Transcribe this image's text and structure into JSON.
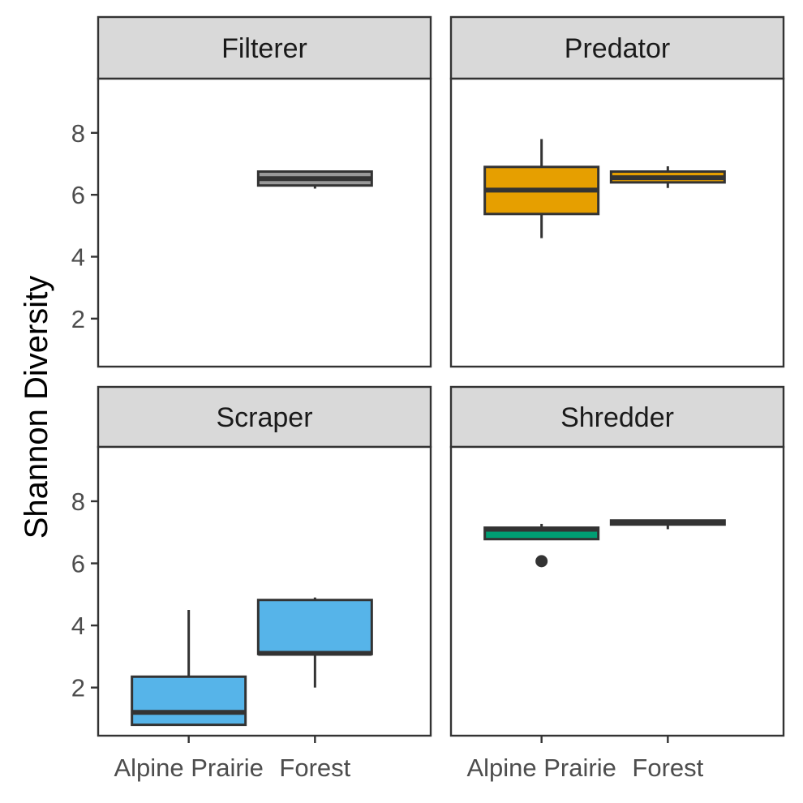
{
  "chart_data": {
    "type": "boxplot",
    "facet_layout": "2x2",
    "xlabel": "",
    "ylabel": "Shannon Diversity",
    "ylim": [
      0.45,
      9.75
    ],
    "y_ticks": [
      2,
      4,
      6,
      8
    ],
    "categories": [
      "Alpine Prairie",
      "Forest"
    ],
    "grid": false,
    "legend": "none",
    "colors": {
      "panel_border": "#333333",
      "strip_fill": "#d9d9d9",
      "median_line": "#333333"
    },
    "panels": [
      {
        "label": "Filterer",
        "fill": "#999999",
        "boxes": [
          {
            "category": "Forest",
            "min": 6.2,
            "q1": 6.3,
            "median": 6.52,
            "q3": 6.75,
            "max": 6.78,
            "outliers": []
          }
        ]
      },
      {
        "label": "Predator",
        "fill": "#E69F00",
        "boxes": [
          {
            "category": "Alpine Prairie",
            "min": 4.6,
            "q1": 5.38,
            "median": 6.15,
            "q3": 6.9,
            "max": 7.8,
            "outliers": []
          },
          {
            "category": "Forest",
            "min": 6.22,
            "q1": 6.4,
            "median": 6.55,
            "q3": 6.75,
            "max": 6.92,
            "outliers": []
          }
        ]
      },
      {
        "label": "Scraper",
        "fill": "#56B4E9",
        "boxes": [
          {
            "category": "Alpine Prairie",
            "min": 0.8,
            "q1": 0.8,
            "median": 1.2,
            "q3": 2.35,
            "max": 4.5,
            "outliers": []
          },
          {
            "category": "Forest",
            "min": 2.0,
            "q1": 3.08,
            "median": 3.1,
            "q3": 4.82,
            "max": 4.9,
            "outliers": []
          }
        ]
      },
      {
        "label": "Shredder",
        "fill": "#009E73",
        "boxes": [
          {
            "category": "Alpine Prairie",
            "min": 6.78,
            "q1": 6.78,
            "median": 7.1,
            "q3": 7.15,
            "max": 7.27,
            "outliers": [
              6.07
            ]
          },
          {
            "category": "Forest",
            "min": 7.1,
            "q1": 7.25,
            "median": 7.33,
            "q3": 7.38,
            "max": 7.4,
            "outliers": []
          }
        ]
      }
    ]
  }
}
